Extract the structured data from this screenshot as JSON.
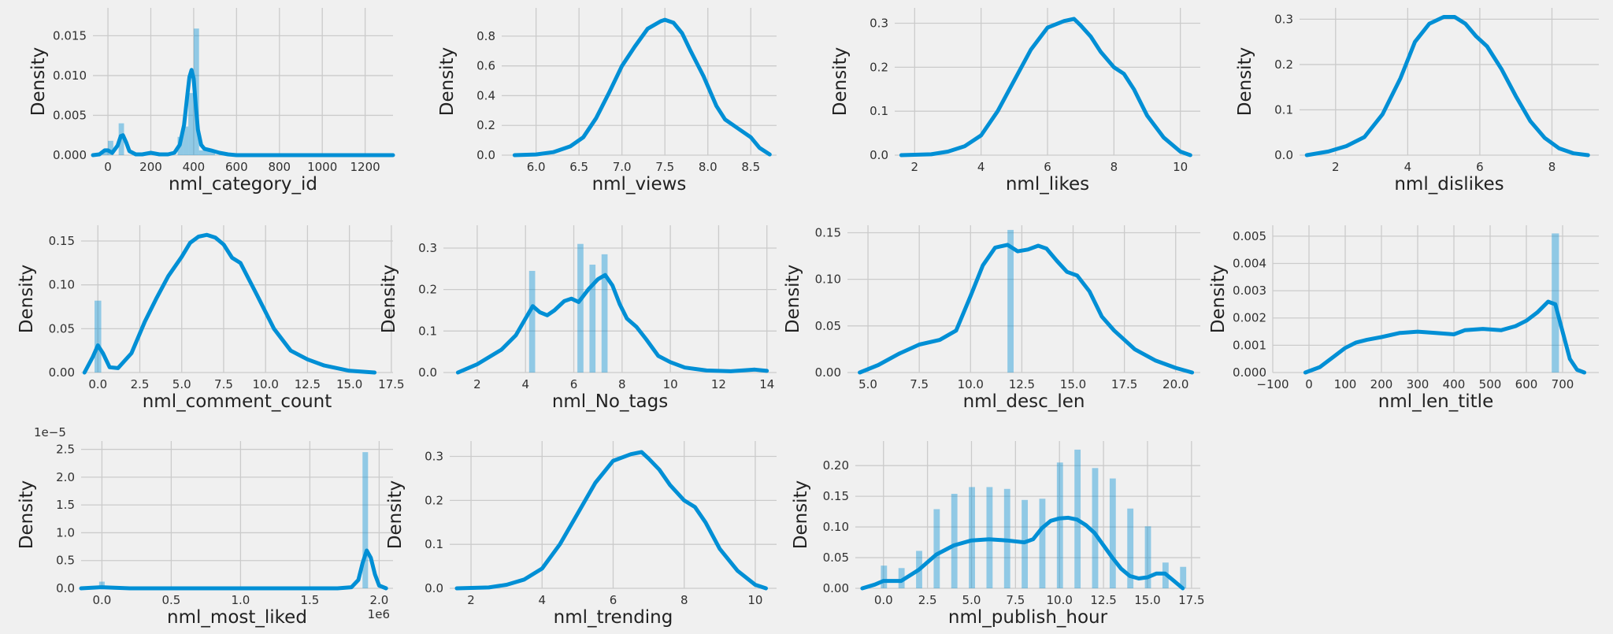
{
  "chart_data": [
    {
      "type": "histogram",
      "xlabel": "nml_category_id",
      "ylabel": "Density",
      "xlim": [
        -70,
        1330
      ],
      "ylim": [
        0,
        0.0185
      ],
      "xticks": [
        0,
        200,
        400,
        600,
        800,
        1000,
        1200
      ],
      "xtick_labels": [
        "0",
        "200",
        "400",
        "600",
        "800",
        "1000",
        "1200"
      ],
      "yticks": [
        0,
        0.005,
        0.01,
        0.015
      ],
      "ytick_labels": [
        "0.000",
        "0.005",
        "0.010",
        "0.015"
      ],
      "bins": [
        {
          "x0": -25,
          "x1": 0,
          "y": 0.0007
        },
        {
          "x0": 0,
          "x1": 25,
          "y": 0.0018
        },
        {
          "x0": 50,
          "x1": 75,
          "y": 0.004
        },
        {
          "x0": 175,
          "x1": 200,
          "y": 0.0004
        },
        {
          "x0": 325,
          "x1": 350,
          "y": 0.0023
        },
        {
          "x0": 350,
          "x1": 375,
          "y": 0.0036
        },
        {
          "x0": 375,
          "x1": 400,
          "y": 0.0078
        },
        {
          "x0": 400,
          "x1": 425,
          "y": 0.0159
        },
        {
          "x0": 425,
          "x1": 450,
          "y": 0.0006
        },
        {
          "x0": 450,
          "x1": 475,
          "y": 0.0006
        },
        {
          "x0": 475,
          "x1": 500,
          "y": 0.0004
        }
      ],
      "kde": {
        "x": [
          -70,
          -40,
          -15,
          0,
          20,
          45,
          60,
          70,
          85,
          100,
          130,
          160,
          200,
          240,
          280,
          310,
          335,
          355,
          370,
          380,
          390,
          400,
          410,
          420,
          435,
          450,
          480,
          520,
          560,
          600,
          700,
          1000,
          1330
        ],
        "y": [
          0,
          0.0001,
          0.0006,
          0.0006,
          0.0003,
          0.0012,
          0.0024,
          0.0025,
          0.0016,
          0.0005,
          0.0001,
          0.0001,
          0.0003,
          0.0001,
          0.0001,
          0.0003,
          0.0013,
          0.0038,
          0.0074,
          0.0098,
          0.0107,
          0.0096,
          0.0062,
          0.0032,
          0.0013,
          0.0008,
          0.0006,
          0.0003,
          0.0001,
          0,
          0,
          0,
          0
        ]
      }
    },
    {
      "type": "histogram",
      "xlabel": "nml_views",
      "ylabel": "Density",
      "xlim": [
        5.6,
        8.8
      ],
      "ylim": [
        0,
        0.99
      ],
      "xticks": [
        6.0,
        6.5,
        7.0,
        7.5,
        8.0,
        8.5
      ],
      "xtick_labels": [
        "6.0",
        "6.5",
        "7.0",
        "7.5",
        "8.0",
        "8.5"
      ],
      "yticks": [
        0,
        0.2,
        0.4,
        0.6,
        0.8
      ],
      "ytick_labels": [
        "0.0",
        "0.2",
        "0.4",
        "0.6",
        "0.8"
      ],
      "bins": [],
      "kde": {
        "x": [
          5.75,
          6.0,
          6.2,
          6.4,
          6.55,
          6.7,
          6.85,
          7.0,
          7.15,
          7.3,
          7.45,
          7.5,
          7.55,
          7.6,
          7.7,
          7.8,
          7.95,
          8.1,
          8.2,
          8.35,
          8.5,
          8.6,
          8.72
        ],
        "y": [
          0,
          0.005,
          0.02,
          0.06,
          0.12,
          0.25,
          0.42,
          0.6,
          0.73,
          0.85,
          0.9,
          0.91,
          0.9,
          0.89,
          0.82,
          0.7,
          0.53,
          0.33,
          0.24,
          0.18,
          0.12,
          0.05,
          0.005
        ]
      }
    },
    {
      "type": "histogram",
      "xlabel": "nml_likes",
      "ylabel": "Density",
      "xlim": [
        1.4,
        10.6
      ],
      "ylim": [
        0,
        0.335
      ],
      "xticks": [
        2,
        4,
        6,
        8,
        10
      ],
      "xtick_labels": [
        "2",
        "4",
        "6",
        "8",
        "10"
      ],
      "yticks": [
        0,
        0.1,
        0.2,
        0.3
      ],
      "ytick_labels": [
        "0.0",
        "0.1",
        "0.2",
        "0.3"
      ],
      "bins": [],
      "kde": {
        "x": [
          1.6,
          2.5,
          3.0,
          3.5,
          4.0,
          4.5,
          5.0,
          5.5,
          6.0,
          6.5,
          6.8,
          7.0,
          7.3,
          7.6,
          8.0,
          8.3,
          8.6,
          9.0,
          9.5,
          10.0,
          10.3
        ],
        "y": [
          0,
          0.002,
          0.008,
          0.02,
          0.045,
          0.1,
          0.17,
          0.24,
          0.29,
          0.305,
          0.31,
          0.295,
          0.27,
          0.235,
          0.2,
          0.185,
          0.15,
          0.09,
          0.04,
          0.008,
          0
        ]
      }
    },
    {
      "type": "histogram",
      "xlabel": "nml_dislikes",
      "ylabel": "Density",
      "xlim": [
        1.0,
        9.3
      ],
      "ylim": [
        0,
        0.325
      ],
      "xticks": [
        2,
        4,
        6,
        8
      ],
      "xtick_labels": [
        "2",
        "4",
        "6",
        "8"
      ],
      "yticks": [
        0,
        0.1,
        0.2,
        0.3
      ],
      "ytick_labels": [
        "0.0",
        "0.1",
        "0.2",
        "0.3"
      ],
      "bins": [],
      "kde": {
        "x": [
          1.2,
          1.8,
          2.3,
          2.8,
          3.3,
          3.8,
          4.2,
          4.6,
          5.0,
          5.3,
          5.6,
          5.9,
          6.2,
          6.6,
          7.0,
          7.4,
          7.8,
          8.2,
          8.6,
          9.0
        ],
        "y": [
          0,
          0.008,
          0.02,
          0.04,
          0.09,
          0.17,
          0.25,
          0.29,
          0.305,
          0.305,
          0.29,
          0.262,
          0.24,
          0.19,
          0.13,
          0.075,
          0.038,
          0.015,
          0.004,
          0
        ]
      }
    },
    {
      "type": "histogram",
      "xlabel": "nml_comment_count",
      "ylabel": "Density",
      "xlim": [
        -1.0,
        17.6
      ],
      "ylim": [
        0,
        0.168
      ],
      "xticks": [
        0,
        2.5,
        5,
        7.5,
        10,
        12.5,
        15,
        17.5
      ],
      "xtick_labels": [
        "0.0",
        "2.5",
        "5.0",
        "7.5",
        "10.0",
        "12.5",
        "15.0",
        "17.5"
      ],
      "yticks": [
        0,
        0.05,
        0.1,
        0.15
      ],
      "ytick_labels": [
        "0.00",
        "0.05",
        "0.10",
        "0.15"
      ],
      "bins": [
        {
          "x0": -0.2,
          "x1": 0.2,
          "y": 0.082
        }
      ],
      "kde": {
        "x": [
          -0.8,
          -0.3,
          0,
          0.3,
          0.7,
          1.2,
          2.0,
          2.8,
          3.5,
          4.2,
          5.0,
          5.5,
          6.0,
          6.5,
          7.0,
          7.5,
          8.0,
          8.5,
          9.5,
          10.5,
          11.5,
          12.5,
          13.5,
          15.0,
          16.5
        ],
        "y": [
          0,
          0.018,
          0.031,
          0.022,
          0.006,
          0.005,
          0.022,
          0.058,
          0.085,
          0.11,
          0.132,
          0.148,
          0.155,
          0.157,
          0.154,
          0.146,
          0.131,
          0.125,
          0.088,
          0.05,
          0.025,
          0.015,
          0.008,
          0.002,
          0
        ]
      }
    },
    {
      "type": "histogram",
      "xlabel": "nml_No_tags",
      "ylabel": "Density",
      "xlim": [
        0.6,
        14.4
      ],
      "ylim": [
        0,
        0.355
      ],
      "xticks": [
        2,
        4,
        6,
        8,
        10,
        12,
        14
      ],
      "xtick_labels": [
        "2",
        "4",
        "6",
        "8",
        "10",
        "12",
        "14"
      ],
      "yticks": [
        0,
        0.1,
        0.2,
        0.3
      ],
      "ytick_labels": [
        "0.0",
        "0.1",
        "0.2",
        "0.3"
      ],
      "bins": [
        {
          "x0": 4.15,
          "x1": 4.4,
          "y": 0.245
        },
        {
          "x0": 6.15,
          "x1": 6.4,
          "y": 0.31
        },
        {
          "x0": 6.65,
          "x1": 6.9,
          "y": 0.26
        },
        {
          "x0": 7.15,
          "x1": 7.4,
          "y": 0.285
        }
      ],
      "kde": {
        "x": [
          1.2,
          2.0,
          3.0,
          3.6,
          4.0,
          4.3,
          4.6,
          4.9,
          5.2,
          5.6,
          5.9,
          6.2,
          6.6,
          7.0,
          7.3,
          7.6,
          7.9,
          8.2,
          8.6,
          9.0,
          9.5,
          10.0,
          10.6,
          11.5,
          12.5,
          13.5,
          14.0
        ],
        "y": [
          0,
          0.02,
          0.055,
          0.09,
          0.13,
          0.16,
          0.145,
          0.138,
          0.15,
          0.172,
          0.178,
          0.17,
          0.2,
          0.225,
          0.235,
          0.21,
          0.165,
          0.13,
          0.11,
          0.08,
          0.04,
          0.025,
          0.012,
          0.005,
          0.003,
          0.007,
          0.004
        ]
      }
    },
    {
      "type": "histogram",
      "xlabel": "nml_desc_len",
      "ylabel": "Density",
      "xlim": [
        4.0,
        21.2
      ],
      "ylim": [
        0,
        0.158
      ],
      "xticks": [
        5.0,
        7.5,
        10.0,
        12.5,
        15.0,
        17.5,
        20.0
      ],
      "xtick_labels": [
        "5.0",
        "7.5",
        "10.0",
        "12.5",
        "15.0",
        "17.5",
        "20.0"
      ],
      "yticks": [
        0,
        0.05,
        0.1,
        0.15
      ],
      "ytick_labels": [
        "0.00",
        "0.05",
        "0.10",
        "0.15"
      ],
      "bins": [
        {
          "x0": 11.8,
          "x1": 12.1,
          "y": 0.153
        }
      ],
      "kde": {
        "x": [
          4.6,
          5.5,
          6.5,
          7.5,
          8.5,
          9.3,
          10.0,
          10.6,
          11.2,
          11.8,
          12.3,
          12.8,
          13.3,
          13.7,
          14.2,
          14.7,
          15.2,
          15.8,
          16.4,
          17.0,
          18.0,
          19.0,
          20.0,
          20.8
        ],
        "y": [
          0,
          0.008,
          0.02,
          0.03,
          0.035,
          0.045,
          0.082,
          0.115,
          0.134,
          0.137,
          0.13,
          0.132,
          0.136,
          0.133,
          0.12,
          0.108,
          0.104,
          0.087,
          0.06,
          0.045,
          0.025,
          0.013,
          0.005,
          0
        ]
      }
    },
    {
      "type": "histogram",
      "xlabel": "nml_len_title",
      "ylabel": "Density",
      "xlim": [
        -100,
        800
      ],
      "ylim": [
        0,
        0.0054
      ],
      "xticks": [
        -100,
        0,
        100,
        200,
        300,
        400,
        500,
        600,
        700
      ],
      "xtick_labels": [
        "−100",
        "0",
        "100",
        "200",
        "300",
        "400",
        "500",
        "600",
        "700"
      ],
      "yticks": [
        0,
        0.001,
        0.002,
        0.003,
        0.004,
        0.005
      ],
      "ytick_labels": [
        "0.000",
        "0.001",
        "0.002",
        "0.003",
        "0.004",
        "0.005"
      ],
      "bins": [
        {
          "x0": 670,
          "x1": 690,
          "y": 0.0051
        }
      ],
      "kde": {
        "x": [
          -10,
          30,
          70,
          100,
          130,
          160,
          200,
          250,
          300,
          350,
          400,
          430,
          480,
          530,
          570,
          600,
          630,
          660,
          680,
          700,
          720,
          740,
          760
        ],
        "y": [
          0,
          0.0002,
          0.0006,
          0.0009,
          0.0011,
          0.0012,
          0.0013,
          0.00145,
          0.0015,
          0.00145,
          0.0014,
          0.00155,
          0.0016,
          0.00155,
          0.0017,
          0.0019,
          0.0022,
          0.0026,
          0.0025,
          0.0015,
          0.0005,
          0.0001,
          0
        ]
      }
    },
    {
      "type": "histogram",
      "xlabel": "nml_most_liked",
      "ylabel": "Density",
      "xlim": [
        -150000,
        2100000
      ],
      "ylim": [
        0,
        2.65e-05
      ],
      "xticks": [
        0,
        500000,
        1000000,
        1500000,
        2000000
      ],
      "xtick_labels": [
        "0.0",
        "0.5",
        "1.0",
        "1.5",
        "2.0"
      ],
      "yticks": [
        0,
        5e-06,
        1e-05,
        1.5e-05,
        2e-05,
        2.5e-05
      ],
      "ytick_labels": [
        "0.0",
        "0.5",
        "1.0",
        "1.5",
        "2.0",
        "2.5"
      ],
      "x_offset_label": "1e6",
      "y_offset_label": "1e−5",
      "bins": [
        {
          "x0": -20000,
          "x1": 20000,
          "y": 1.2e-06
        },
        {
          "x0": 1880000,
          "x1": 1920000,
          "y": 2.45e-05
        }
      ],
      "kde": {
        "x": [
          -150000,
          0,
          200000,
          600000,
          1000000,
          1400000,
          1700000,
          1800000,
          1850000,
          1880000,
          1910000,
          1940000,
          1970000,
          2000000,
          2050000
        ],
        "y": [
          0,
          2e-07,
          0,
          0,
          0,
          0,
          0,
          2e-07,
          1.5e-06,
          4.5e-06,
          6.8e-06,
          5.5e-06,
          2.5e-06,
          5e-07,
          0
        ]
      }
    },
    {
      "type": "histogram",
      "xlabel": "nml_trending",
      "ylabel": "Density",
      "xlim": [
        1.4,
        10.6
      ],
      "ylim": [
        0,
        0.335
      ],
      "xticks": [
        2,
        4,
        6,
        8,
        10
      ],
      "xtick_labels": [
        "2",
        "4",
        "6",
        "8",
        "10"
      ],
      "yticks": [
        0,
        0.1,
        0.2,
        0.3
      ],
      "ytick_labels": [
        "0.0",
        "0.1",
        "0.2",
        "0.3"
      ],
      "bins": [],
      "kde": {
        "x": [
          1.6,
          2.5,
          3.0,
          3.5,
          4.0,
          4.5,
          5.0,
          5.5,
          6.0,
          6.5,
          6.8,
          7.0,
          7.3,
          7.6,
          8.0,
          8.3,
          8.6,
          9.0,
          9.5,
          10.0,
          10.3
        ],
        "y": [
          0,
          0.002,
          0.008,
          0.02,
          0.045,
          0.1,
          0.17,
          0.24,
          0.29,
          0.305,
          0.31,
          0.295,
          0.27,
          0.235,
          0.2,
          0.185,
          0.15,
          0.09,
          0.04,
          0.008,
          0
        ]
      }
    },
    {
      "type": "histogram",
      "xlabel": "nml_publish_hour",
      "ylabel": "Density",
      "xlim": [
        -1.6,
        18.0
      ],
      "ylim": [
        0,
        0.24
      ],
      "xticks": [
        0,
        2.5,
        5,
        7.5,
        10,
        12.5,
        15,
        17.5
      ],
      "xtick_labels": [
        "0.0",
        "2.5",
        "5.0",
        "7.5",
        "10.0",
        "12.5",
        "15.0",
        "17.5"
      ],
      "yticks": [
        0,
        0.05,
        0.1,
        0.15,
        0.2
      ],
      "ytick_labels": [
        "0.00",
        "0.05",
        "0.10",
        "0.15",
        "0.20"
      ],
      "bins": [
        {
          "x0": -0.15,
          "x1": 0.2,
          "y": 0.037
        },
        {
          "x0": 0.85,
          "x1": 1.2,
          "y": 0.033
        },
        {
          "x0": 1.85,
          "x1": 2.2,
          "y": 0.061
        },
        {
          "x0": 2.85,
          "x1": 3.2,
          "y": 0.129
        },
        {
          "x0": 3.85,
          "x1": 4.2,
          "y": 0.154
        },
        {
          "x0": 4.85,
          "x1": 5.2,
          "y": 0.165
        },
        {
          "x0": 5.85,
          "x1": 6.2,
          "y": 0.165
        },
        {
          "x0": 6.85,
          "x1": 7.2,
          "y": 0.162
        },
        {
          "x0": 7.85,
          "x1": 8.2,
          "y": 0.144
        },
        {
          "x0": 8.85,
          "x1": 9.2,
          "y": 0.146
        },
        {
          "x0": 9.85,
          "x1": 10.2,
          "y": 0.205
        },
        {
          "x0": 10.85,
          "x1": 11.2,
          "y": 0.226
        },
        {
          "x0": 11.85,
          "x1": 12.2,
          "y": 0.196
        },
        {
          "x0": 12.85,
          "x1": 13.2,
          "y": 0.179
        },
        {
          "x0": 13.85,
          "x1": 14.2,
          "y": 0.13
        },
        {
          "x0": 14.85,
          "x1": 15.2,
          "y": 0.101
        },
        {
          "x0": 15.85,
          "x1": 16.2,
          "y": 0.042
        },
        {
          "x0": 16.85,
          "x1": 17.2,
          "y": 0.035
        }
      ],
      "kde": {
        "x": [
          -1.2,
          -0.5,
          0,
          0.5,
          1.0,
          2.0,
          3.0,
          4.0,
          5.0,
          6.0,
          7.0,
          8.0,
          8.5,
          9.0,
          9.5,
          10.0,
          10.5,
          11.0,
          11.5,
          12.0,
          12.5,
          13.0,
          13.5,
          14.0,
          14.5,
          15.0,
          15.5,
          16.0,
          16.5,
          17.0
        ],
        "y": [
          0,
          0.006,
          0.012,
          0.012,
          0.012,
          0.03,
          0.055,
          0.07,
          0.078,
          0.08,
          0.078,
          0.075,
          0.08,
          0.098,
          0.11,
          0.114,
          0.115,
          0.112,
          0.103,
          0.09,
          0.07,
          0.05,
          0.032,
          0.02,
          0.016,
          0.018,
          0.024,
          0.024,
          0.012,
          0
        ]
      }
    }
  ]
}
